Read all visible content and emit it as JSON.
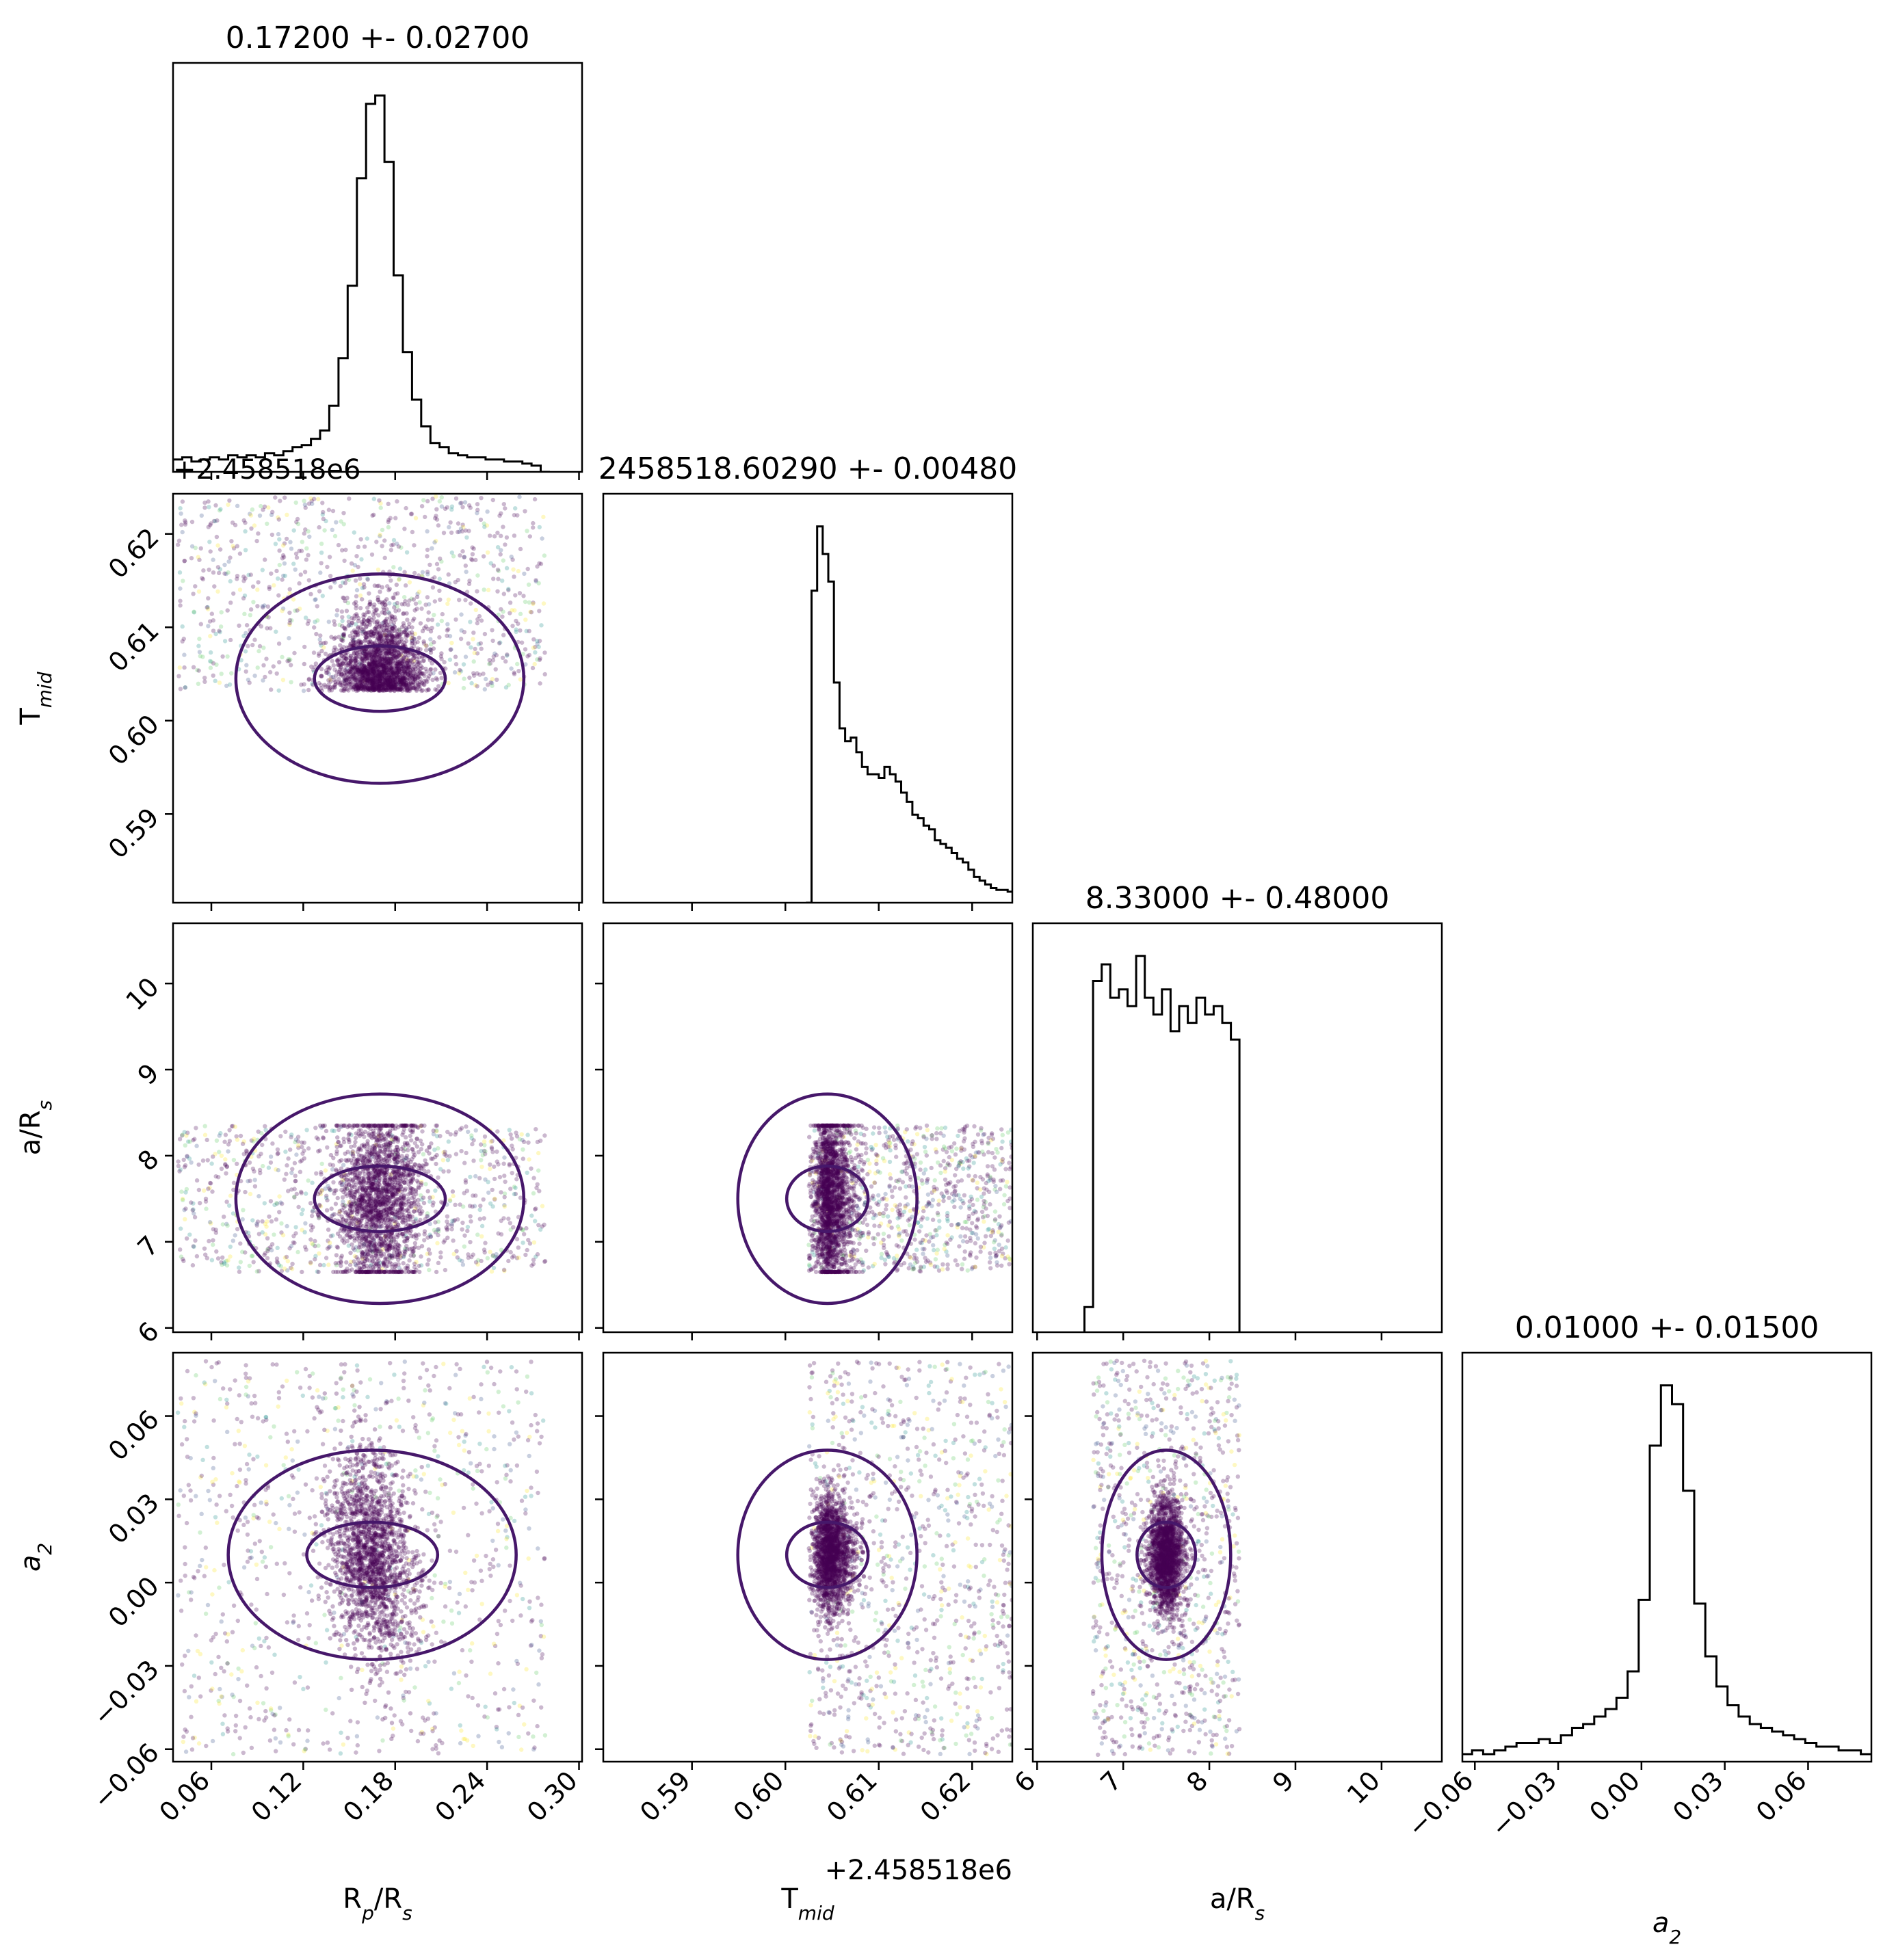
{
  "figure": {
    "type": "corner-plot",
    "parameters": [
      {
        "key": "rp",
        "label_main": "R",
        "label_sub": "p",
        "label_mid": "/R",
        "label_sub2": "s",
        "title": "0.17200 +- 0.02700",
        "range": [
          0.035,
          0.302
        ],
        "ticks": [
          0.06,
          0.12,
          0.18,
          0.24,
          0.3
        ],
        "tick_labels": [
          "0.06",
          "0.12",
          "0.18",
          "0.24",
          "0.30"
        ]
      },
      {
        "key": "tmid",
        "label_main": "T",
        "label_sub": "mid",
        "title": "2458518.60290 +- 0.00480",
        "offset_label": "+2.458518e6",
        "range": [
          0.5805,
          0.6243
        ],
        "ticks": [
          0.58,
          0.59,
          0.6,
          0.61,
          0.62
        ],
        "tick_labels": [
          "0.58",
          "0.59",
          "0.60",
          "0.61",
          "0.62"
        ]
      },
      {
        "key": "ars",
        "label_main": "a/R",
        "label_sub": "s",
        "title": "8.33000 +- 0.48000",
        "range": [
          5.95,
          10.7
        ],
        "ticks": [
          6,
          7,
          8,
          9,
          10
        ],
        "tick_labels": [
          "6",
          "7",
          "8",
          "9",
          "10"
        ]
      },
      {
        "key": "a2",
        "label_main": "a",
        "label_sub": "2",
        "title": "0.01000 +- 0.01500",
        "range": [
          -0.0645,
          0.0828
        ],
        "ticks": [
          -0.06,
          -0.03,
          0.0,
          0.03,
          0.06
        ],
        "tick_labels": [
          "−0.06",
          "−0.03",
          "0.00",
          "0.03",
          "0.06"
        ]
      }
    ],
    "colors": {
      "hist": "#000000",
      "points_dense": "#440154",
      "contour": "#46176a",
      "points_outlier": [
        "#3b528b",
        "#21918c",
        "#5ec962",
        "#fde725"
      ]
    }
  },
  "chart_data": [
    {
      "type": "histogram",
      "parameter": "R_p/R_s",
      "title": "0.17200 +- 0.02700",
      "bin_centers": [
        0.038,
        0.044,
        0.05,
        0.056,
        0.062,
        0.068,
        0.074,
        0.08,
        0.086,
        0.092,
        0.098,
        0.104,
        0.11,
        0.116,
        0.122,
        0.128,
        0.134,
        0.14,
        0.146,
        0.152,
        0.158,
        0.164,
        0.17,
        0.176,
        0.182,
        0.188,
        0.194,
        0.2,
        0.206,
        0.212,
        0.218,
        0.224,
        0.23,
        0.236,
        0.242,
        0.248,
        0.254,
        0.26,
        0.266,
        0.272,
        0.278
      ],
      "counts": [
        6,
        7,
        5,
        6,
        7,
        6,
        8,
        7,
        8,
        7,
        9,
        8,
        10,
        12,
        13,
        16,
        20,
        32,
        55,
        90,
        142,
        178,
        182,
        150,
        95,
        58,
        35,
        22,
        14,
        12,
        9,
        8,
        7,
        7,
        6,
        6,
        5,
        5,
        4,
        3,
        0
      ]
    },
    {
      "type": "histogram",
      "parameter": "T_mid",
      "title": "2458518.60290 +- 0.00480",
      "x_offset": "+2.458518e6",
      "bin_centers": [
        0.6025,
        0.6031,
        0.6037,
        0.6043,
        0.6049,
        0.6055,
        0.6061,
        0.6067,
        0.6073,
        0.6079,
        0.6085,
        0.6091,
        0.6097,
        0.6103,
        0.6109,
        0.6115,
        0.6121,
        0.6127,
        0.6133,
        0.6139,
        0.6145,
        0.6151,
        0.6157,
        0.6163,
        0.6169,
        0.6175,
        0.6181,
        0.6187,
        0.6193,
        0.6199,
        0.6205,
        0.6211,
        0.6217,
        0.6223,
        0.6229,
        0.6235,
        0.6241
      ],
      "counts": [
        0,
        170,
        205,
        190,
        175,
        120,
        95,
        88,
        90,
        82,
        74,
        70,
        70,
        68,
        74,
        70,
        66,
        60,
        55,
        48,
        46,
        42,
        40,
        34,
        32,
        30,
        27,
        24,
        22,
        18,
        14,
        12,
        10,
        8,
        7,
        7,
        6
      ]
    },
    {
      "type": "histogram",
      "parameter": "a/R_s",
      "title": "8.33000 +- 0.48000",
      "bin_centers": [
        6.6,
        6.7,
        6.8,
        6.9,
        7.0,
        7.1,
        7.2,
        7.3,
        7.4,
        7.5,
        7.6,
        7.7,
        7.8,
        7.9,
        8.0,
        8.1,
        8.2,
        8.3
      ],
      "counts": [
        6,
        84,
        88,
        80,
        82,
        78,
        90,
        80,
        76,
        82,
        72,
        78,
        74,
        80,
        76,
        78,
        74,
        70
      ]
    },
    {
      "type": "histogram",
      "parameter": "a_2",
      "title": "0.01000 +- 0.01500",
      "bin_centers": [
        -0.063,
        -0.059,
        -0.055,
        -0.051,
        -0.047,
        -0.043,
        -0.039,
        -0.035,
        -0.031,
        -0.027,
        -0.023,
        -0.019,
        -0.015,
        -0.011,
        -0.007,
        -0.003,
        0.001,
        0.005,
        0.009,
        0.013,
        0.017,
        0.021,
        0.025,
        0.029,
        0.033,
        0.037,
        0.041,
        0.045,
        0.049,
        0.053,
        0.057,
        0.061,
        0.065,
        0.069,
        0.073,
        0.077,
        0.081
      ],
      "counts": [
        2,
        3,
        2,
        3,
        4,
        5,
        5,
        6,
        5,
        7,
        9,
        10,
        12,
        14,
        17,
        24,
        43,
        84,
        100,
        95,
        72,
        42,
        28,
        20,
        15,
        12,
        10,
        9,
        8,
        7,
        6,
        5,
        4,
        4,
        3,
        3,
        2
      ]
    },
    {
      "type": "scatter",
      "x": "R_p/R_s",
      "y": "T_mid",
      "x_range": [
        0.035,
        0.302
      ],
      "y_range": [
        0.5805,
        0.6243
      ],
      "point_cloud": {
        "x_span": [
          0.038,
          0.278
        ],
        "y_span": [
          0.6032,
          0.624
        ],
        "dense_core": {
          "x": 0.17,
          "y": 0.6045
        }
      }
    },
    {
      "type": "scatter",
      "x": "R_p/R_s",
      "y": "a/R_s",
      "x_range": [
        0.035,
        0.302
      ],
      "y_range": [
        5.95,
        10.7
      ],
      "point_cloud": {
        "x_span": [
          0.038,
          0.278
        ],
        "y_span": [
          6.65,
          8.35
        ],
        "dense_core": {
          "x": 0.17,
          "y": 7.5
        }
      }
    },
    {
      "type": "scatter",
      "x": "T_mid",
      "y": "a/R_s",
      "x_range": [
        0.5805,
        0.6243
      ],
      "y_range": [
        5.95,
        10.7
      ],
      "point_cloud": {
        "x_span": [
          0.6025,
          0.6243
        ],
        "y_span": [
          6.65,
          8.35
        ],
        "dense_core": {
          "x": 0.6045,
          "y": 7.5
        }
      }
    },
    {
      "type": "scatter",
      "x": "R_p/R_s",
      "y": "a_2",
      "x_range": [
        0.035,
        0.302
      ],
      "y_range": [
        -0.0645,
        0.0828
      ],
      "point_cloud": {
        "x_span": [
          0.038,
          0.278
        ],
        "y_span": [
          -0.062,
          0.08
        ],
        "dense_core": {
          "x": 0.165,
          "y": 0.01
        }
      }
    },
    {
      "type": "scatter",
      "x": "T_mid",
      "y": "a_2",
      "x_range": [
        0.5805,
        0.6243
      ],
      "y_range": [
        -0.0645,
        0.0828
      ],
      "point_cloud": {
        "x_span": [
          0.6025,
          0.6243
        ],
        "y_span": [
          -0.062,
          0.08
        ],
        "dense_core": {
          "x": 0.6045,
          "y": 0.01
        }
      }
    },
    {
      "type": "scatter",
      "x": "a/R_s",
      "y": "a_2",
      "x_range": [
        5.95,
        10.7
      ],
      "y_range": [
        -0.0645,
        0.0828
      ],
      "point_cloud": {
        "x_span": [
          6.65,
          8.35
        ],
        "y_span": [
          -0.062,
          0.08
        ],
        "dense_core": {
          "x": 7.5,
          "y": 0.01
        }
      }
    }
  ]
}
